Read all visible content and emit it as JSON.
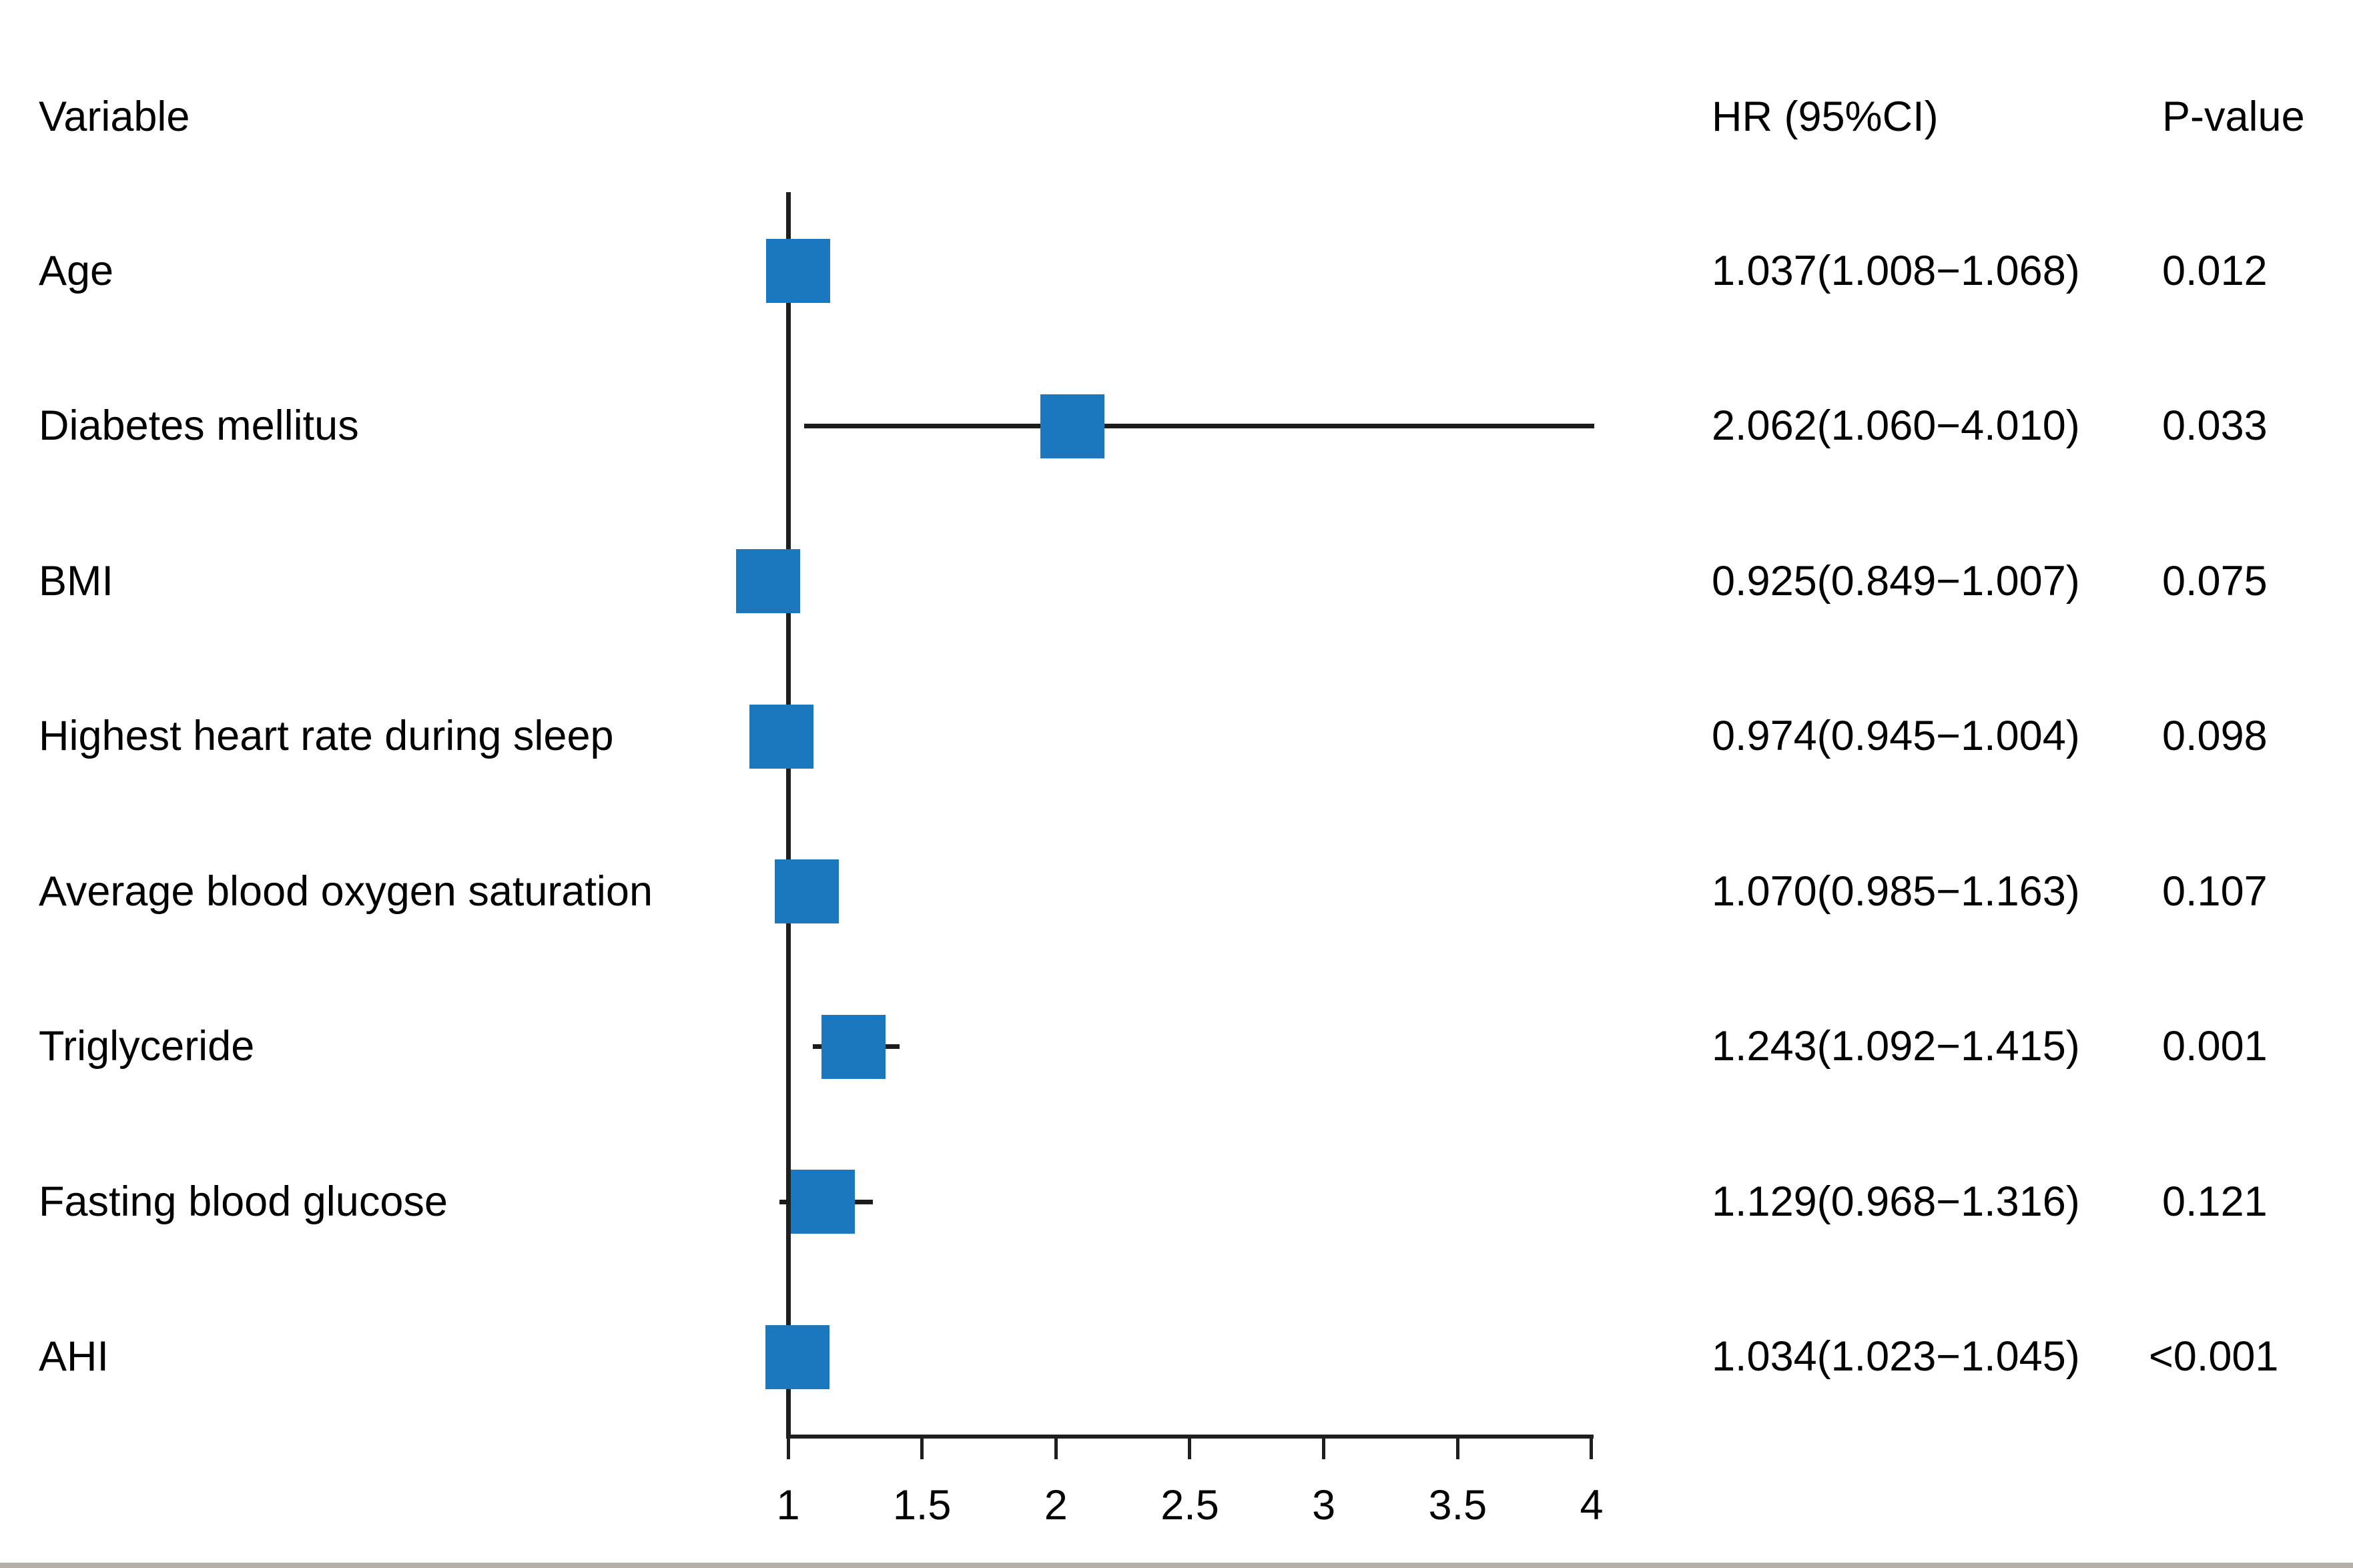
{
  "figure": {
    "background": "#ffffff",
    "bottom_edge_color": "#b5afa9"
  },
  "chart_data": {
    "type": "forest",
    "marker": "square",
    "marker_color": "#1b78be",
    "line_color": "#1c1c1c",
    "legend_position": "none",
    "grid": false,
    "column_headers": {
      "variable": "Variable",
      "hr_ci": "HR (95%CI)",
      "p_value": "P-value"
    },
    "x_axis": {
      "range": [
        1,
        4
      ],
      "ticks": [
        1,
        1.5,
        2,
        2.5,
        3,
        3.5,
        4
      ],
      "tick_labels": [
        "1",
        "1.5",
        "2",
        "2.5",
        "3",
        "3.5",
        "4"
      ],
      "reference_line": 1
    },
    "rows": [
      {
        "variable": "Age",
        "hr": 1.037,
        "ci_low": 1.008,
        "ci_high": 1.068,
        "hr_ci_label": "1.037(1.008−1.068)",
        "p_value": "0.012"
      },
      {
        "variable": "Diabetes mellitus",
        "hr": 2.062,
        "ci_low": 1.06,
        "ci_high": 4.01,
        "hr_ci_label": "2.062(1.060−4.010)",
        "p_value": "0.033"
      },
      {
        "variable": "BMI",
        "hr": 0.925,
        "ci_low": 0.849,
        "ci_high": 1.007,
        "hr_ci_label": "0.925(0.849−1.007)",
        "p_value": "0.075"
      },
      {
        "variable": "Highest heart rate during sleep",
        "hr": 0.974,
        "ci_low": 0.945,
        "ci_high": 1.004,
        "hr_ci_label": "0.974(0.945−1.004)",
        "p_value": "0.098"
      },
      {
        "variable": "Average blood oxygen saturation",
        "hr": 1.07,
        "ci_low": 0.985,
        "ci_high": 1.163,
        "hr_ci_label": "1.070(0.985−1.163)",
        "p_value": "0.107"
      },
      {
        "variable": "Triglyceride",
        "hr": 1.243,
        "ci_low": 1.092,
        "ci_high": 1.415,
        "hr_ci_label": "1.243(1.092−1.415)",
        "p_value": "0.001"
      },
      {
        "variable": "Fasting blood glucose",
        "hr": 1.129,
        "ci_low": 0.968,
        "ci_high": 1.316,
        "hr_ci_label": "1.129(0.968−1.316)",
        "p_value": "0.121"
      },
      {
        "variable": "AHI",
        "hr": 1.034,
        "ci_low": 1.023,
        "ci_high": 1.045,
        "hr_ci_label": "1.034(1.023−1.045)",
        "p_value": "<0.001"
      }
    ]
  }
}
